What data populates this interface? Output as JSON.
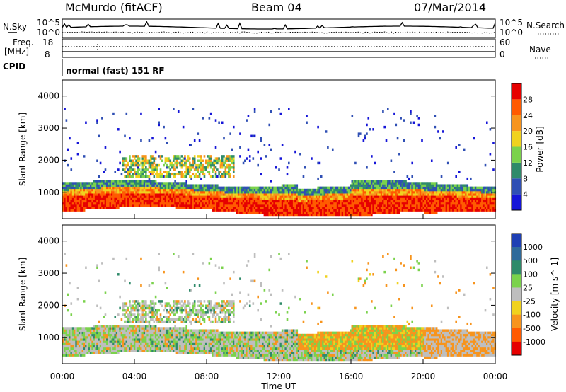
{
  "header": {
    "station": "McMurdo (fitACF)",
    "beam": "Beam 04",
    "date": "07/Mar/2014"
  },
  "noise_panel": {
    "left_label": "N.Sky",
    "right_label": "N.Search",
    "left_ticks": [
      "10^5",
      "10^0"
    ],
    "right_ticks": [
      "10^5",
      "10^0"
    ]
  },
  "freq_panel": {
    "left_label_1": "Freq.",
    "left_label_2": "[MHz]",
    "right_label": "Nave",
    "left_ticks": [
      "18",
      "8"
    ],
    "right_ticks": [
      "60",
      "0"
    ]
  },
  "cpid": {
    "label": "CPID",
    "mode": "normal (fast) 151 RF"
  },
  "colors": {
    "power_scale": [
      "#1515d8",
      "#2f4fb4",
      "#2f8a6a",
      "#7bd24c",
      "#f0d21e",
      "#f7941d",
      "#ff5a00",
      "#e60000"
    ],
    "velocity_scale": [
      "#1e3fb4",
      "#2f6a9a",
      "#2f8a6a",
      "#7bd24c",
      "#bebebe",
      "#f0d21e",
      "#f7941d",
      "#ff5a00",
      "#e60000"
    ]
  },
  "chart_data": [
    {
      "type": "heatmap",
      "name": "power",
      "ylabel": "Slant Range [km]",
      "yticks": [
        1000,
        2000,
        3000,
        4000
      ],
      "ylim": [
        180,
        4500
      ],
      "colorbar_label": "Power [dB]",
      "colorbar_ticks": [
        4,
        8,
        12,
        16,
        20,
        24,
        28
      ],
      "colorbar_range": [
        0,
        32
      ],
      "xlim_hours": [
        0,
        24
      ],
      "bands": [
        {
          "t0": 0,
          "t1": 24,
          "r0": 350,
          "r1": 1350,
          "level": 5
        },
        {
          "t0": 0,
          "t1": 24,
          "r0": 400,
          "r1": 1050,
          "level": 8
        },
        {
          "t0": 3.5,
          "t1": 9.5,
          "r0": 1450,
          "r1": 2100,
          "level": 4
        },
        {
          "t0": 1.8,
          "t1": 2.3,
          "r0": 2300,
          "r1": 2500,
          "level": 1
        }
      ]
    },
    {
      "type": "heatmap",
      "name": "velocity",
      "ylabel": "Slant Range [km]",
      "yticks": [
        1000,
        2000,
        3000,
        4000
      ],
      "ylim": [
        180,
        4500
      ],
      "colorbar_label": "Velocity [m s^-1]",
      "colorbar_ticks": [
        "1000",
        "500",
        "100",
        "25",
        "-25",
        "-100",
        "-500",
        "-1000"
      ],
      "xlim_hours": [
        0,
        24
      ],
      "xticks": [
        "00:00",
        "04:00",
        "08:00",
        "12:00",
        "16:00",
        "20:00",
        "00:00"
      ],
      "xlabel": "Time UT"
    }
  ]
}
